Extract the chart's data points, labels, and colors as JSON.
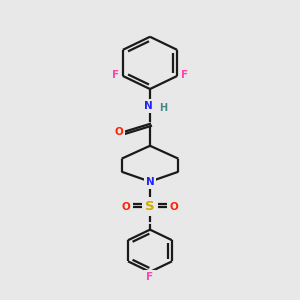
{
  "bg_color": "#e8e8e8",
  "bond_color": "#1a1a1a",
  "atom_colors": {
    "F": "#ff44aa",
    "N": "#2222ff",
    "O": "#ff2200",
    "S": "#ccaa00",
    "H": "#448888",
    "C": "#1a1a1a"
  },
  "lw": 1.6,
  "figsize": [
    3.0,
    3.0
  ],
  "dpi": 100
}
